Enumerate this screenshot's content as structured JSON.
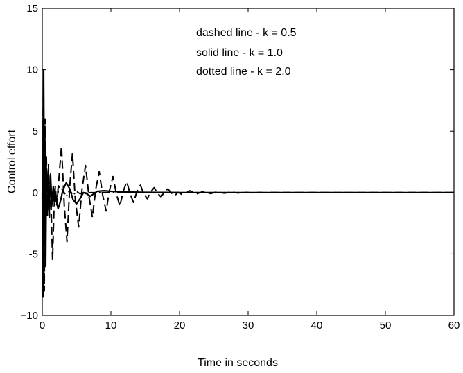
{
  "chart_data": {
    "type": "line",
    "title": "",
    "xlabel": "Time in seconds",
    "ylabel": "Control effort",
    "xlim": [
      0,
      60
    ],
    "ylim": [
      -10,
      15
    ],
    "xticks": [
      0,
      10,
      20,
      30,
      40,
      50,
      60
    ],
    "yticks": [
      -10,
      -5,
      0,
      5,
      10,
      15
    ],
    "xtick_labels": [
      "0",
      "10",
      "20",
      "30",
      "40",
      "50",
      "60"
    ],
    "ytick_labels": [
      "−10",
      "-5",
      "0",
      "5",
      "10",
      "15"
    ],
    "grid": false,
    "legend_lines": [
      "dashed line - k = 0.5",
      "solid line - k = 1.0",
      "dotted line - k = 2.0"
    ],
    "series": [
      {
        "style": "dashed",
        "x": [
          0,
          0.1,
          0.2,
          0.3,
          0.4,
          0.5,
          0.6,
          0.75,
          0.9,
          1.05,
          1.2,
          1.35,
          1.5,
          1.7,
          1.9,
          2.1,
          2.4,
          2.8,
          3.2,
          3.6,
          4.0,
          4.4,
          4.8,
          5.3,
          5.8,
          6.3,
          6.8,
          7.3,
          7.8,
          8.3,
          8.8,
          9.3,
          9.8,
          10.3,
          10.8,
          11.3,
          11.8,
          12.3,
          12.8,
          13.3,
          13.8,
          14.3,
          14.8,
          15.3,
          15.8,
          16.3,
          16.8,
          17.3,
          17.8,
          18.3,
          18.8,
          19.3,
          19.8,
          20.5,
          21.5,
          22.5,
          23.5,
          24.5,
          25.5,
          26.5,
          27.5,
          28.5,
          29.5,
          30.5,
          31.5,
          32.5,
          33.5,
          35,
          40,
          50,
          60
        ],
        "y": [
          0,
          -5,
          9,
          -8,
          6,
          -4,
          3,
          -2,
          2.3,
          -2,
          1.5,
          -2.5,
          -5.5,
          -1.5,
          0.5,
          -1,
          1,
          3.8,
          -1,
          -4,
          0.5,
          3.2,
          -0.5,
          -2.8,
          0.3,
          2.2,
          -0.3,
          -2,
          0.3,
          1.7,
          -0.2,
          -1.5,
          0.2,
          1.3,
          -0.1,
          -1.1,
          0.1,
          0.9,
          -0.1,
          -0.8,
          0.1,
          0.6,
          -0.1,
          -0.5,
          0.05,
          0.4,
          -0.05,
          -0.35,
          0.04,
          0.3,
          -0.03,
          -0.25,
          0.02,
          -0.2,
          0.15,
          -0.1,
          0.1,
          -0.08,
          0.06,
          -0.05,
          0.04,
          -0.03,
          0.02,
          -0.02,
          0.01,
          -0.01,
          0,
          0,
          0,
          0,
          0
        ]
      },
      {
        "style": "solid",
        "x": [
          0,
          0.1,
          0.2,
          0.3,
          0.4,
          0.5,
          0.6,
          0.8,
          1.0,
          1.2,
          1.4,
          1.6,
          1.8,
          2.0,
          2.3,
          2.6,
          3.0,
          3.5,
          4.0,
          4.5,
          5.0,
          5.5,
          6.0,
          6.5,
          7.0,
          8.0,
          9.0,
          10.0,
          12.0,
          15.0,
          20.0,
          30.0,
          40.0,
          50.0,
          60.0
        ],
        "y": [
          0,
          -8.5,
          10,
          -3,
          4,
          -6,
          2,
          0.5,
          -1.5,
          1.5,
          -1,
          0.5,
          -0.8,
          -0.5,
          -1.3,
          -0.8,
          0.2,
          0.8,
          0.3,
          -0.6,
          -0.9,
          -0.5,
          0,
          -0.1,
          -0.3,
          0.1,
          0.15,
          0.1,
          0.05,
          0.02,
          0,
          0,
          0,
          0,
          0
        ]
      },
      {
        "style": "dotted",
        "x": [
          0,
          0.1,
          0.2,
          0.3,
          0.4,
          0.5,
          0.6,
          0.75,
          0.9,
          1.05,
          1.2,
          1.4,
          1.6,
          1.8,
          2.1,
          2.5,
          3.0,
          3.5,
          4.0,
          4.5,
          5.0,
          5.5,
          6.0,
          6.5,
          7.0,
          8.0,
          9.0,
          10.0,
          12.0,
          15.0,
          20.0,
          30.0,
          60.0
        ],
        "y": [
          0,
          -7,
          9.5,
          -6,
          5,
          -3,
          2.5,
          -1.5,
          1.5,
          -1.8,
          1,
          -1.2,
          -0.6,
          0.3,
          -0.5,
          0.5,
          0.2,
          -0.3,
          0.2,
          -0.2,
          0.1,
          -0.1,
          0.05,
          -0.05,
          0,
          0,
          0,
          0,
          0,
          0,
          0,
          0,
          0
        ]
      }
    ]
  }
}
